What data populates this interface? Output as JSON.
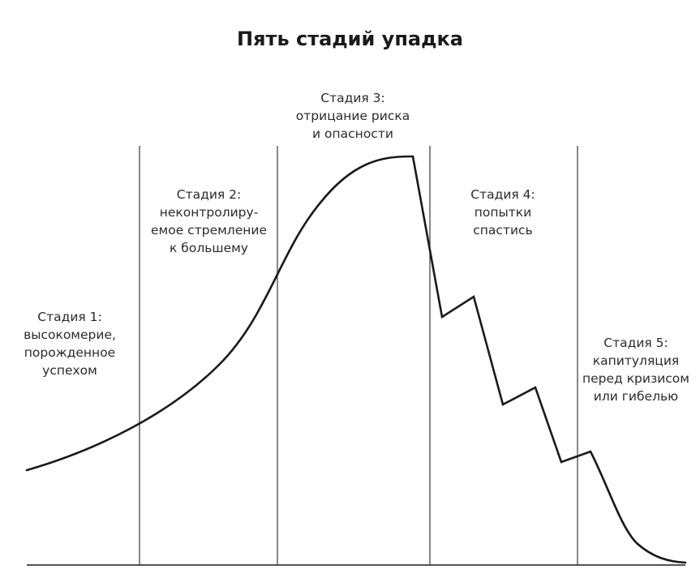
{
  "title": "Пять стадий упадка",
  "stages": [
    {
      "lines": [
        "Стадия 1:",
        "высокомерие,",
        "порожденное",
        "успехом"
      ]
    },
    {
      "lines": [
        "Стадия 2:",
        "неконтролиру-",
        "емое стремление",
        "к большему"
      ]
    },
    {
      "lines": [
        "Стадия 3:",
        "отрицание риска",
        "и опасности"
      ]
    },
    {
      "lines": [
        "Стадия 4:",
        "попытки",
        "спастись"
      ]
    },
    {
      "lines": [
        "Стадия 5:",
        "капитуляция",
        "перед кризисом",
        "или гибелью"
      ]
    }
  ],
  "colors": {
    "line": "#1a1a1a",
    "divider": "#3a3a3a",
    "text": "#2b2b2b"
  }
}
